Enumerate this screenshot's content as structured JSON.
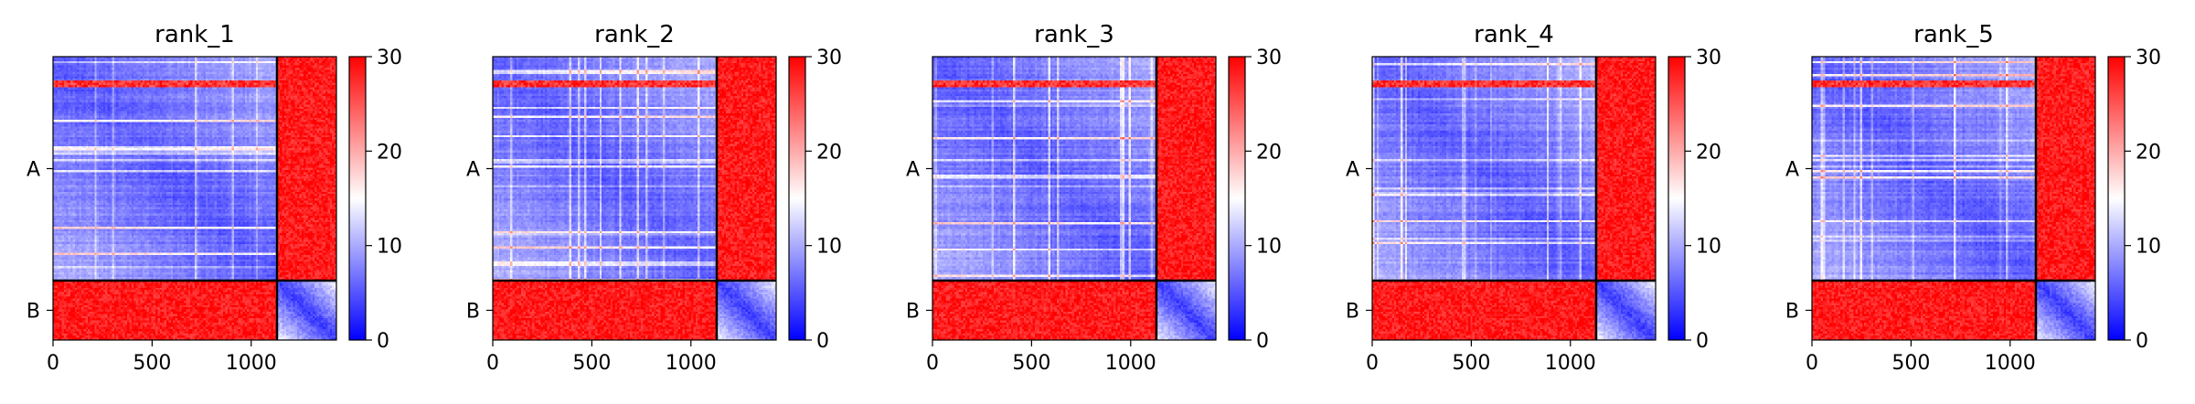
{
  "chart_data": [
    {
      "type": "heatmap",
      "title": "rank_1",
      "xticks": [
        "0",
        "500",
        "1000"
      ],
      "yticks": [
        "A",
        "B"
      ],
      "colorbar_ticks": [
        "0",
        "10",
        "20",
        "30"
      ],
      "colorbar_range": [
        0,
        30
      ],
      "colormap": "bwr",
      "chains": [
        {
          "name": "A",
          "start": 0,
          "end": 1130
        },
        {
          "name": "B",
          "start": 1130,
          "end": 1430
        }
      ],
      "x_range": [
        0,
        1430
      ]
    },
    {
      "type": "heatmap",
      "title": "rank_2",
      "xticks": [
        "0",
        "500",
        "1000"
      ],
      "yticks": [
        "A",
        "B"
      ],
      "colorbar_ticks": [
        "0",
        "10",
        "20",
        "30"
      ],
      "colorbar_range": [
        0,
        30
      ],
      "colormap": "bwr",
      "chains": [
        {
          "name": "A",
          "start": 0,
          "end": 1130
        },
        {
          "name": "B",
          "start": 1130,
          "end": 1430
        }
      ],
      "x_range": [
        0,
        1430
      ]
    },
    {
      "type": "heatmap",
      "title": "rank_3",
      "xticks": [
        "0",
        "500",
        "1000"
      ],
      "yticks": [
        "A",
        "B"
      ],
      "colorbar_ticks": [
        "0",
        "10",
        "20",
        "30"
      ],
      "colorbar_range": [
        0,
        30
      ],
      "colormap": "bwr",
      "chains": [
        {
          "name": "A",
          "start": 0,
          "end": 1130
        },
        {
          "name": "B",
          "start": 1130,
          "end": 1430
        }
      ],
      "x_range": [
        0,
        1430
      ]
    },
    {
      "type": "heatmap",
      "title": "rank_4",
      "xticks": [
        "0",
        "500",
        "1000"
      ],
      "yticks": [
        "A",
        "B"
      ],
      "colorbar_ticks": [
        "0",
        "10",
        "20",
        "30"
      ],
      "colorbar_range": [
        0,
        30
      ],
      "colormap": "bwr",
      "chains": [
        {
          "name": "A",
          "start": 0,
          "end": 1130
        },
        {
          "name": "B",
          "start": 1130,
          "end": 1430
        }
      ],
      "x_range": [
        0,
        1430
      ]
    },
    {
      "type": "heatmap",
      "title": "rank_5",
      "xticks": [
        "0",
        "500",
        "1000"
      ],
      "yticks": [
        "A",
        "B"
      ],
      "colorbar_ticks": [
        "0",
        "10",
        "20",
        "30"
      ],
      "colorbar_range": [
        0,
        30
      ],
      "colormap": "bwr",
      "chains": [
        {
          "name": "A",
          "start": 0,
          "end": 1130
        },
        {
          "name": "B",
          "start": 1130,
          "end": 1430
        }
      ],
      "x_range": [
        0,
        1430
      ]
    }
  ],
  "colors": {
    "low": "#0000ff",
    "mid": "#ffffff",
    "high": "#ff0000"
  }
}
